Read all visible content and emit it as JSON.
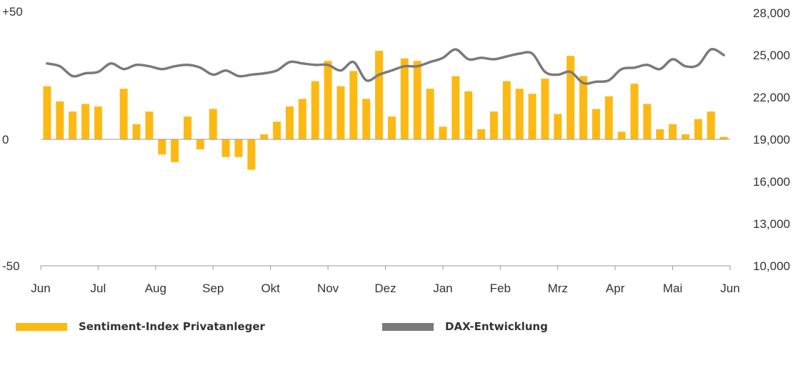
{
  "chart_data": {
    "type": "bar+line",
    "x_ticks": [
      "Jun",
      "Jul",
      "Aug",
      "Sep",
      "Okt",
      "Nov",
      "Dez",
      "Jan",
      "Feb",
      "Mrz",
      "Apr",
      "Mai",
      "Jun"
    ],
    "left_axis": {
      "ticks": [
        "+50",
        "0",
        "-50"
      ],
      "ylim": [
        -50,
        50
      ]
    },
    "right_axis": {
      "ticks": [
        "28,000",
        "25,000",
        "22,000",
        "19,000",
        "16,000",
        "13,000",
        "10,000"
      ],
      "ylim": [
        10000,
        28000
      ]
    },
    "colors": {
      "bars": "#fdb913",
      "line": "#7a7a7a",
      "axis": "#9a9a9a"
    },
    "series": [
      {
        "name": "Sentiment-Index Privatanleger",
        "type": "bar",
        "axis": "left",
        "values": [
          21,
          15,
          11,
          14,
          13,
          0,
          20,
          6,
          11,
          -6,
          -9,
          9,
          -4,
          12,
          -7,
          -7,
          -12,
          2,
          7,
          13,
          16,
          23,
          31,
          21,
          27,
          16,
          35,
          9,
          32,
          31,
          20,
          5,
          25,
          19,
          4,
          11,
          23,
          20,
          18,
          24,
          10,
          33,
          25,
          12,
          17,
          3,
          22,
          14,
          4,
          6,
          2,
          8,
          11,
          1
        ]
      },
      {
        "name": "DAX-Entwicklung",
        "type": "line",
        "axis": "right",
        "values": [
          24400,
          24200,
          23500,
          23700,
          23800,
          24400,
          24000,
          24300,
          24200,
          24000,
          24200,
          24300,
          24100,
          23600,
          23900,
          23500,
          23600,
          23700,
          23900,
          24500,
          24400,
          24300,
          24300,
          23900,
          24500,
          23200,
          23600,
          23900,
          24200,
          24200,
          24500,
          24800,
          25400,
          24700,
          24800,
          24700,
          24900,
          25100,
          25100,
          23800,
          23600,
          23800,
          23000,
          23100,
          23200,
          24000,
          24100,
          24300,
          24000,
          24700,
          24200,
          24300,
          25400,
          25000
        ]
      }
    ]
  },
  "legend": {
    "bars_label": "Sentiment-Index Privatanleger",
    "line_label": "DAX-Entwicklung"
  }
}
